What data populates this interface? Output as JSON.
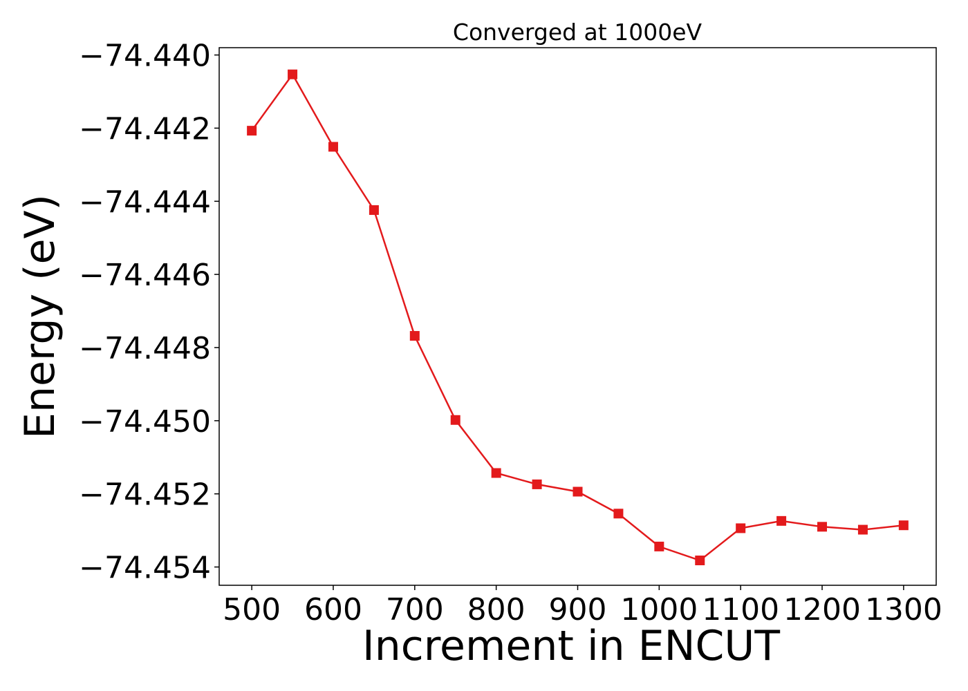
{
  "chart_data": {
    "type": "line",
    "title": "Converged at 1000eV",
    "xlabel": "Increment in ENCUT",
    "ylabel": "Energy (eV)",
    "xlim": [
      460,
      1340
    ],
    "ylim": [
      -74.4545,
      -74.4398
    ],
    "x_ticks": [
      500,
      600,
      700,
      800,
      900,
      1000,
      1100,
      1200,
      1300
    ],
    "x_tick_labels": [
      "500",
      "600",
      "700",
      "800",
      "900",
      "1000",
      "1100",
      "1200",
      "1300"
    ],
    "y_ticks": [
      -74.44,
      -74.442,
      -74.444,
      -74.446,
      -74.448,
      -74.45,
      -74.452,
      -74.454
    ],
    "y_tick_labels": [
      "−74.440",
      "−74.442",
      "−74.444",
      "−74.446",
      "−74.448",
      "−74.450",
      "−74.452",
      "−74.454"
    ],
    "grid": false,
    "series": [
      {
        "color": "#e31a1c",
        "marker": "square",
        "x": [
          500,
          550,
          600,
          650,
          700,
          750,
          800,
          850,
          900,
          950,
          1000,
          1050,
          1100,
          1150,
          1200,
          1250,
          1300
        ],
        "y": [
          -74.44207,
          -74.44053,
          -74.44251,
          -74.44424,
          -74.44768,
          -74.44998,
          -74.45143,
          -74.45174,
          -74.45194,
          -74.45254,
          -74.45344,
          -74.45382,
          -74.45294,
          -74.45274,
          -74.4529,
          -74.45298,
          -74.45286
        ]
      }
    ]
  }
}
